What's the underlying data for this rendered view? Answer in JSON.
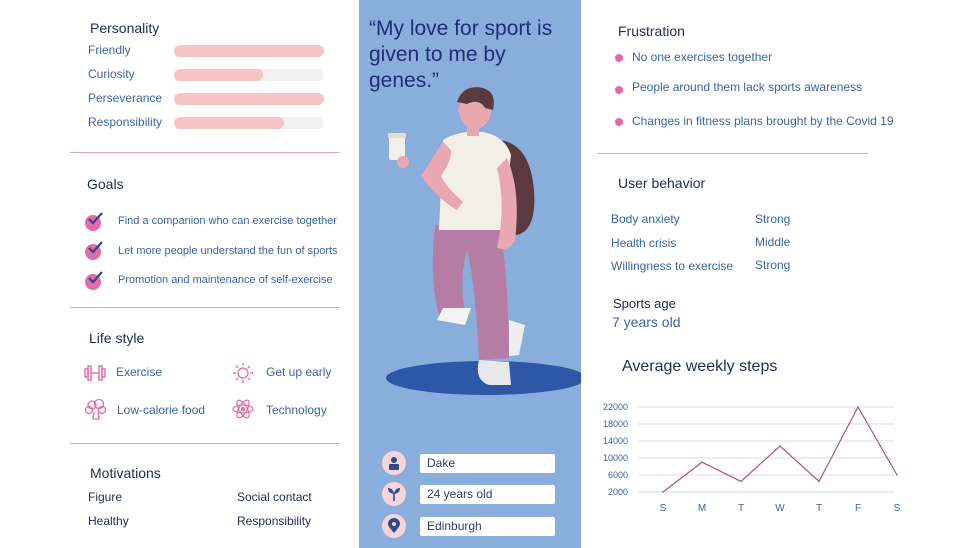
{
  "personality": {
    "title": "Personality",
    "traits": [
      {
        "label": "Friendly",
        "level": 1.0
      },
      {
        "label": "Curiosity",
        "level": 0.59
      },
      {
        "label": "Perseverance",
        "level": 1.0
      },
      {
        "label": "Responsibility",
        "level": 0.73
      }
    ]
  },
  "goals": {
    "title": "Goals",
    "items": [
      "Find a companion who can exercise together",
      "Let more people understand the fun of sports",
      "Promotion and maintenance of self-exercise"
    ]
  },
  "lifestyle": {
    "title": "Life style",
    "items": [
      {
        "label": "Exercise",
        "icon": "dumbbell-icon"
      },
      {
        "label": "Get up early",
        "icon": "sun-icon"
      },
      {
        "label": "Low-calorie food",
        "icon": "broccoli-icon"
      },
      {
        "label": "Technology",
        "icon": "atom-icon"
      }
    ]
  },
  "motivations": {
    "title": "Motivations",
    "items": [
      "Figure",
      "Social contact",
      "Healthy",
      "Responsibility"
    ]
  },
  "quote": "“My love for sport is given to me by genes.”",
  "profile": {
    "name": "Dake",
    "age": "24 years old",
    "location": "Edinburgh"
  },
  "frustration": {
    "title": "Frustration",
    "items": [
      "No one exercises together",
      "People around them lack sports awareness",
      "Changes in fitness plans brought by the Covid 19"
    ]
  },
  "user_behavior": {
    "title": "User behavior",
    "rows": [
      {
        "label": "Body anxiety",
        "value": "Strong"
      },
      {
        "label": "Health crisis",
        "value": "Middle"
      },
      {
        "label": "Willingness to exercise",
        "value": "Strong"
      }
    ]
  },
  "sports_age": {
    "label": "Sports age",
    "value": "7 years old"
  },
  "colors": {
    "accent_pink": "#e46aa8",
    "panel_blue": "#8aaedc",
    "line": "#b0518a",
    "bar": "#f6c3c7"
  },
  "chart_data": {
    "type": "line",
    "title": "Average weekly steps",
    "categories": [
      "S",
      "M",
      "T",
      "W",
      "T",
      "F",
      "S"
    ],
    "values": [
      2000,
      9000,
      4500,
      12800,
      4500,
      22000,
      6000
    ],
    "yticks": [
      2000,
      6000,
      10000,
      14000,
      18000,
      22000
    ],
    "ylim": [
      2000,
      22000
    ],
    "grid": true
  }
}
